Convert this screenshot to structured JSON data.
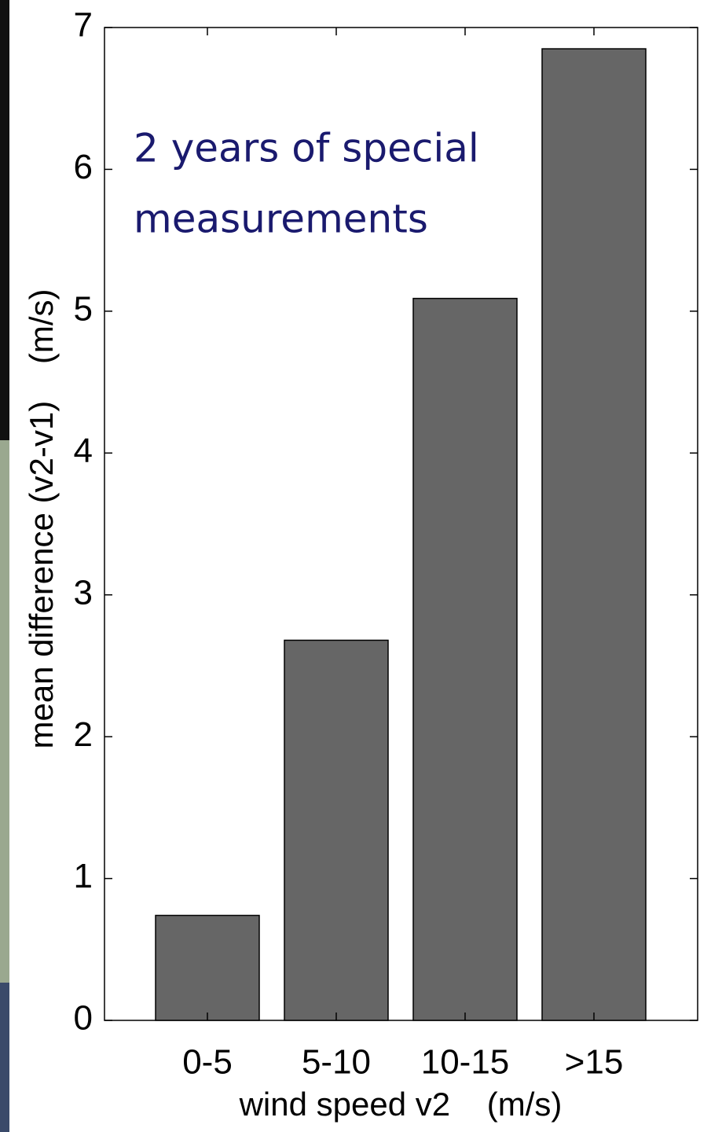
{
  "chart_data": {
    "type": "bar",
    "annotation": [
      "2 years of special",
      "measurements"
    ],
    "x_label": "wind speed v2    (m/s)",
    "y_label": "mean difference (v2-v1)    (m/s)",
    "categories": [
      "0-5",
      "5-10",
      "10-15",
      ">15"
    ],
    "values": [
      0.74,
      2.68,
      5.09,
      6.85
    ],
    "color": "#666666",
    "ylim": [
      0,
      7
    ],
    "yticks": [
      0,
      1,
      2,
      3,
      4,
      5,
      6,
      7
    ],
    "grid": false
  }
}
